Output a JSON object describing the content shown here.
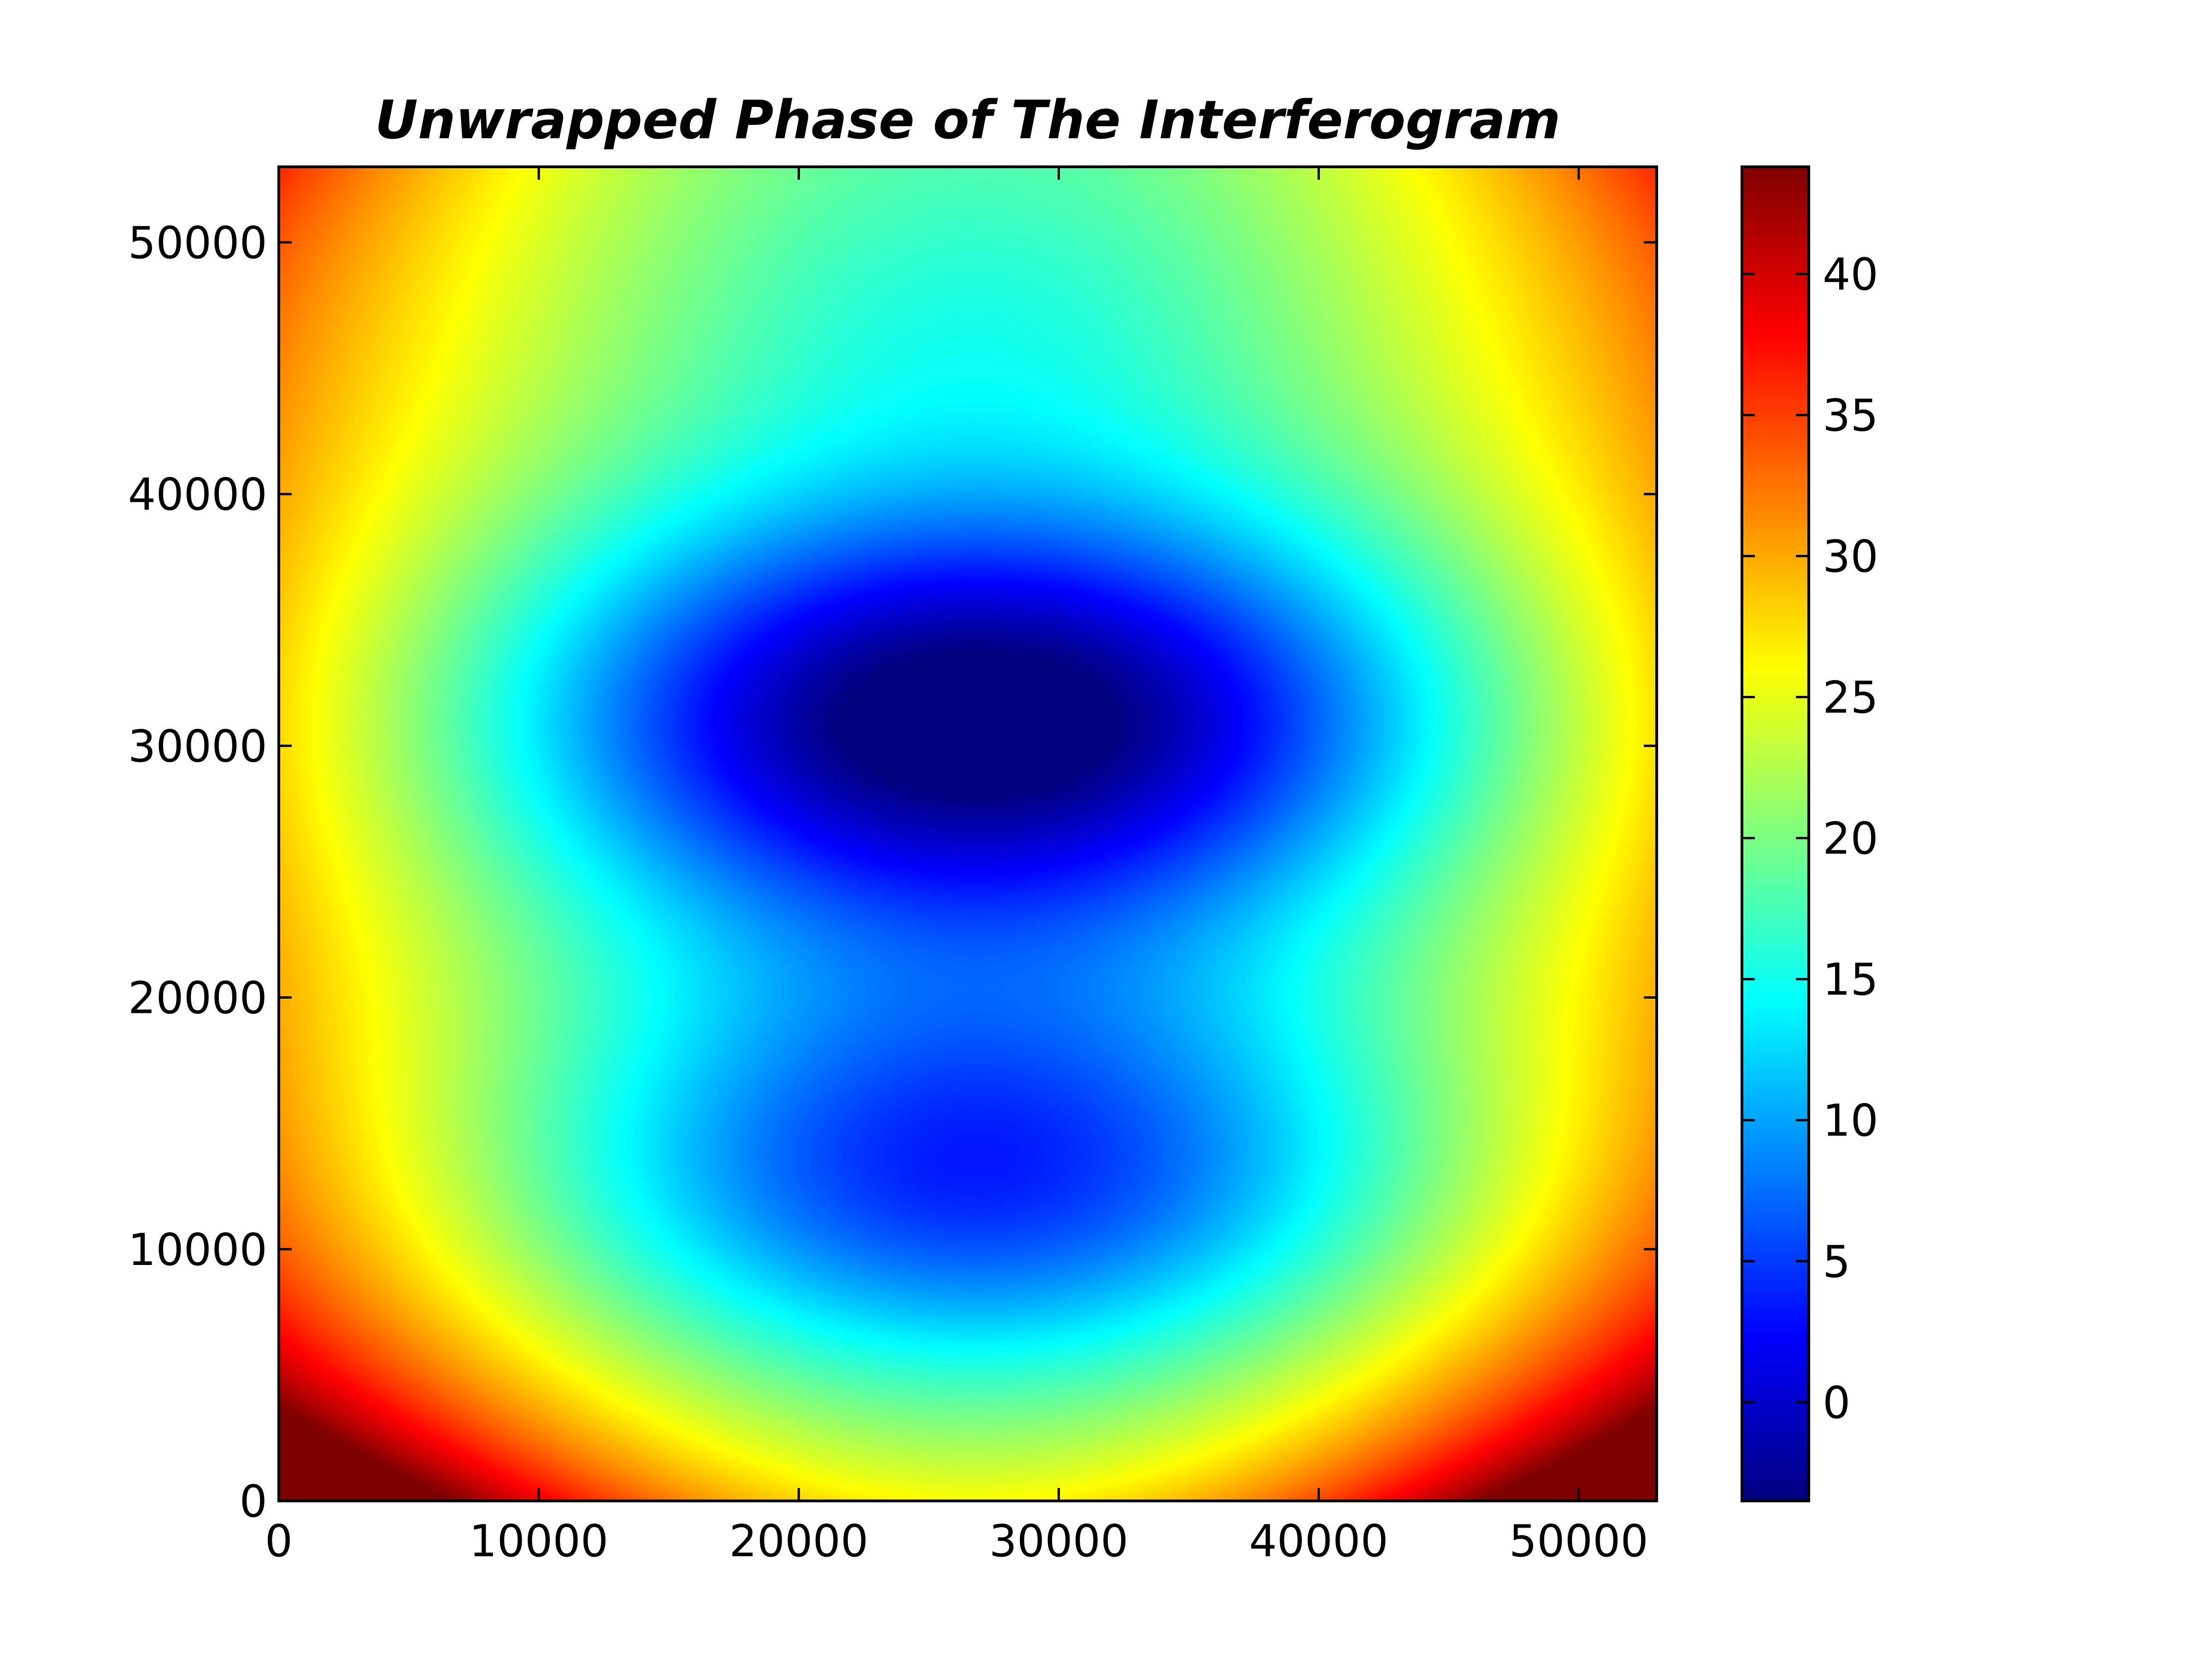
{
  "chart_data": {
    "type": "heatmap",
    "title": "Unwrapped Phase of The Interferogram",
    "xlabel": "",
    "ylabel": "",
    "xlim": [
      0,
      53000
    ],
    "ylim": [
      0,
      53000
    ],
    "x_ticks": [
      0,
      10000,
      20000,
      30000,
      40000,
      50000
    ],
    "x_tick_labels": [
      "0",
      "10000",
      "20000",
      "30000",
      "40000",
      "50000"
    ],
    "y_ticks": [
      0,
      10000,
      20000,
      30000,
      40000,
      50000
    ],
    "y_tick_labels": [
      "0",
      "10000",
      "20000",
      "30000",
      "40000",
      "50000"
    ],
    "colormap": "jet",
    "colorbar": {
      "range": [
        -3.5,
        43.8
      ],
      "ticks": [
        0,
        5,
        10,
        15,
        20,
        25,
        30,
        35,
        40
      ],
      "tick_labels": [
        "0",
        "5",
        "10",
        "15",
        "20",
        "25",
        "30",
        "35",
        "40"
      ]
    },
    "field_description": "Phase minima near (27000, 31000) ≈ -3 and (27000, 13000) ≈ 2; maxima in corners: bottom corners ≈ 42, top corners ≈ 33.",
    "grid": false,
    "legend": "none"
  }
}
